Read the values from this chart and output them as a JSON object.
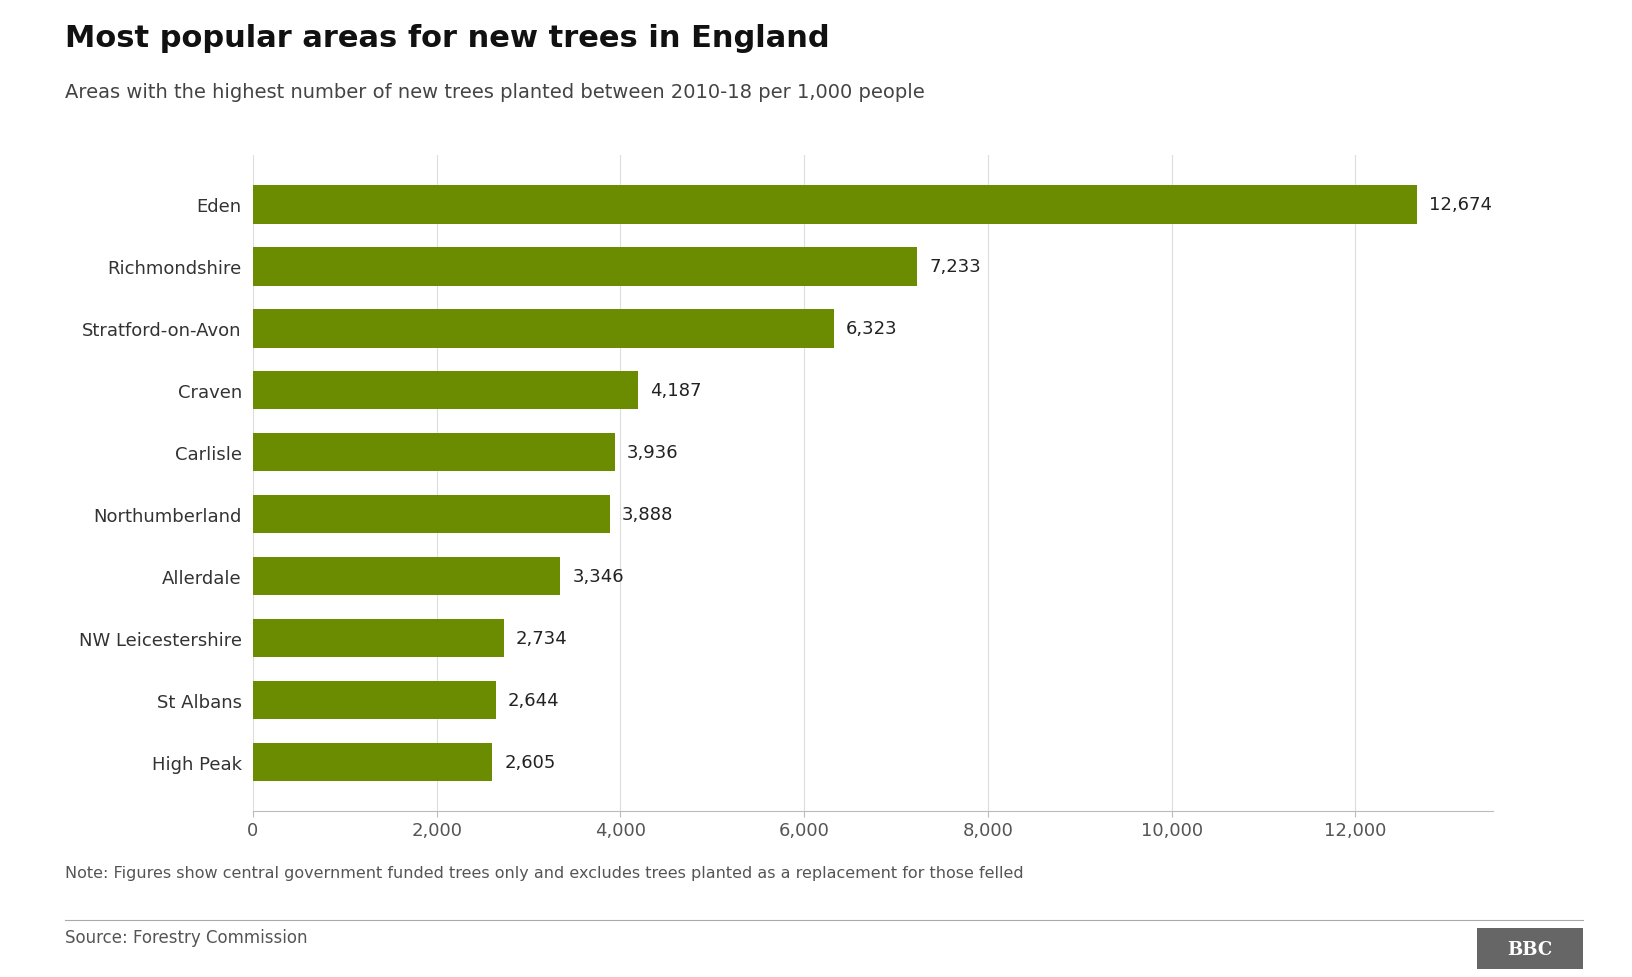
{
  "title": "Most popular areas for new trees in England",
  "subtitle": "Areas with the highest number of new trees planted between 2010-18 per 1,000 people",
  "categories": [
    "High Peak",
    "St Albans",
    "NW Leicestershire",
    "Allerdale",
    "Northumberland",
    "Carlisle",
    "Craven",
    "Stratford-on-Avon",
    "Richmondshire",
    "Eden"
  ],
  "values": [
    2605,
    2644,
    2734,
    3346,
    3888,
    3936,
    4187,
    6323,
    7233,
    12674
  ],
  "bar_color": "#6b8c00",
  "background_color": "#ffffff",
  "note_text": "Note: Figures show central government funded trees only and excludes trees planted as a replacement for those felled",
  "source_text": "Source: Forestry Commission",
  "bbc_text": "BBC",
  "xlim": [
    0,
    13500
  ],
  "xticks": [
    0,
    2000,
    4000,
    6000,
    8000,
    10000,
    12000
  ],
  "xtick_labels": [
    "0",
    "2,000",
    "4,000",
    "6,000",
    "8,000",
    "10,000",
    "12,000"
  ],
  "title_fontsize": 22,
  "subtitle_fontsize": 14,
  "label_fontsize": 13,
  "value_fontsize": 13,
  "note_fontsize": 11.5,
  "source_fontsize": 12
}
